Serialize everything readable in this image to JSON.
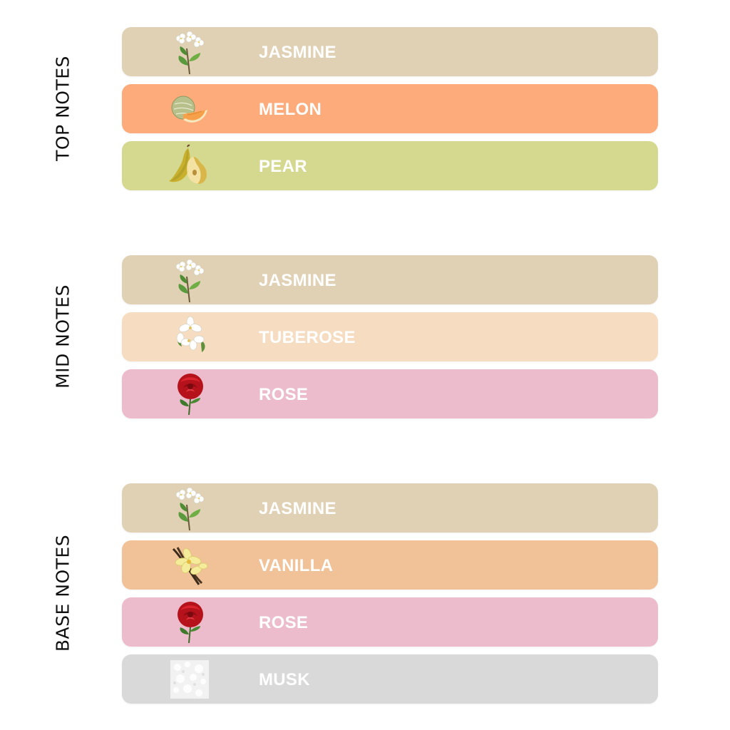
{
  "sections": [
    {
      "title": "TOP NOTES",
      "notes": [
        {
          "label": "JASMINE",
          "icon": "jasmine-icon",
          "color": "#e0d1b4"
        },
        {
          "label": "MELON",
          "icon": "melon-icon",
          "color": "#fdab7b"
        },
        {
          "label": "PEAR",
          "icon": "pear-icon",
          "color": "#d4d98f"
        }
      ]
    },
    {
      "title": "MID NOTES",
      "notes": [
        {
          "label": "JASMINE",
          "icon": "jasmine-icon",
          "color": "#e0d1b4"
        },
        {
          "label": "TUBEROSE",
          "icon": "tuberose-icon",
          "color": "#f6dcc0"
        },
        {
          "label": "ROSE",
          "icon": "rose-icon",
          "color": "#ecbccc"
        }
      ]
    },
    {
      "title": "BASE NOTES",
      "notes": [
        {
          "label": "JASMINE",
          "icon": "jasmine-icon",
          "color": "#e0d1b4"
        },
        {
          "label": "VANILLA",
          "icon": "vanilla-icon",
          "color": "#f1c298"
        },
        {
          "label": "ROSE",
          "icon": "rose-icon",
          "color": "#ecbccc"
        },
        {
          "label": "MUSK",
          "icon": "musk-icon",
          "color": "#d9d9d9"
        }
      ]
    }
  ]
}
